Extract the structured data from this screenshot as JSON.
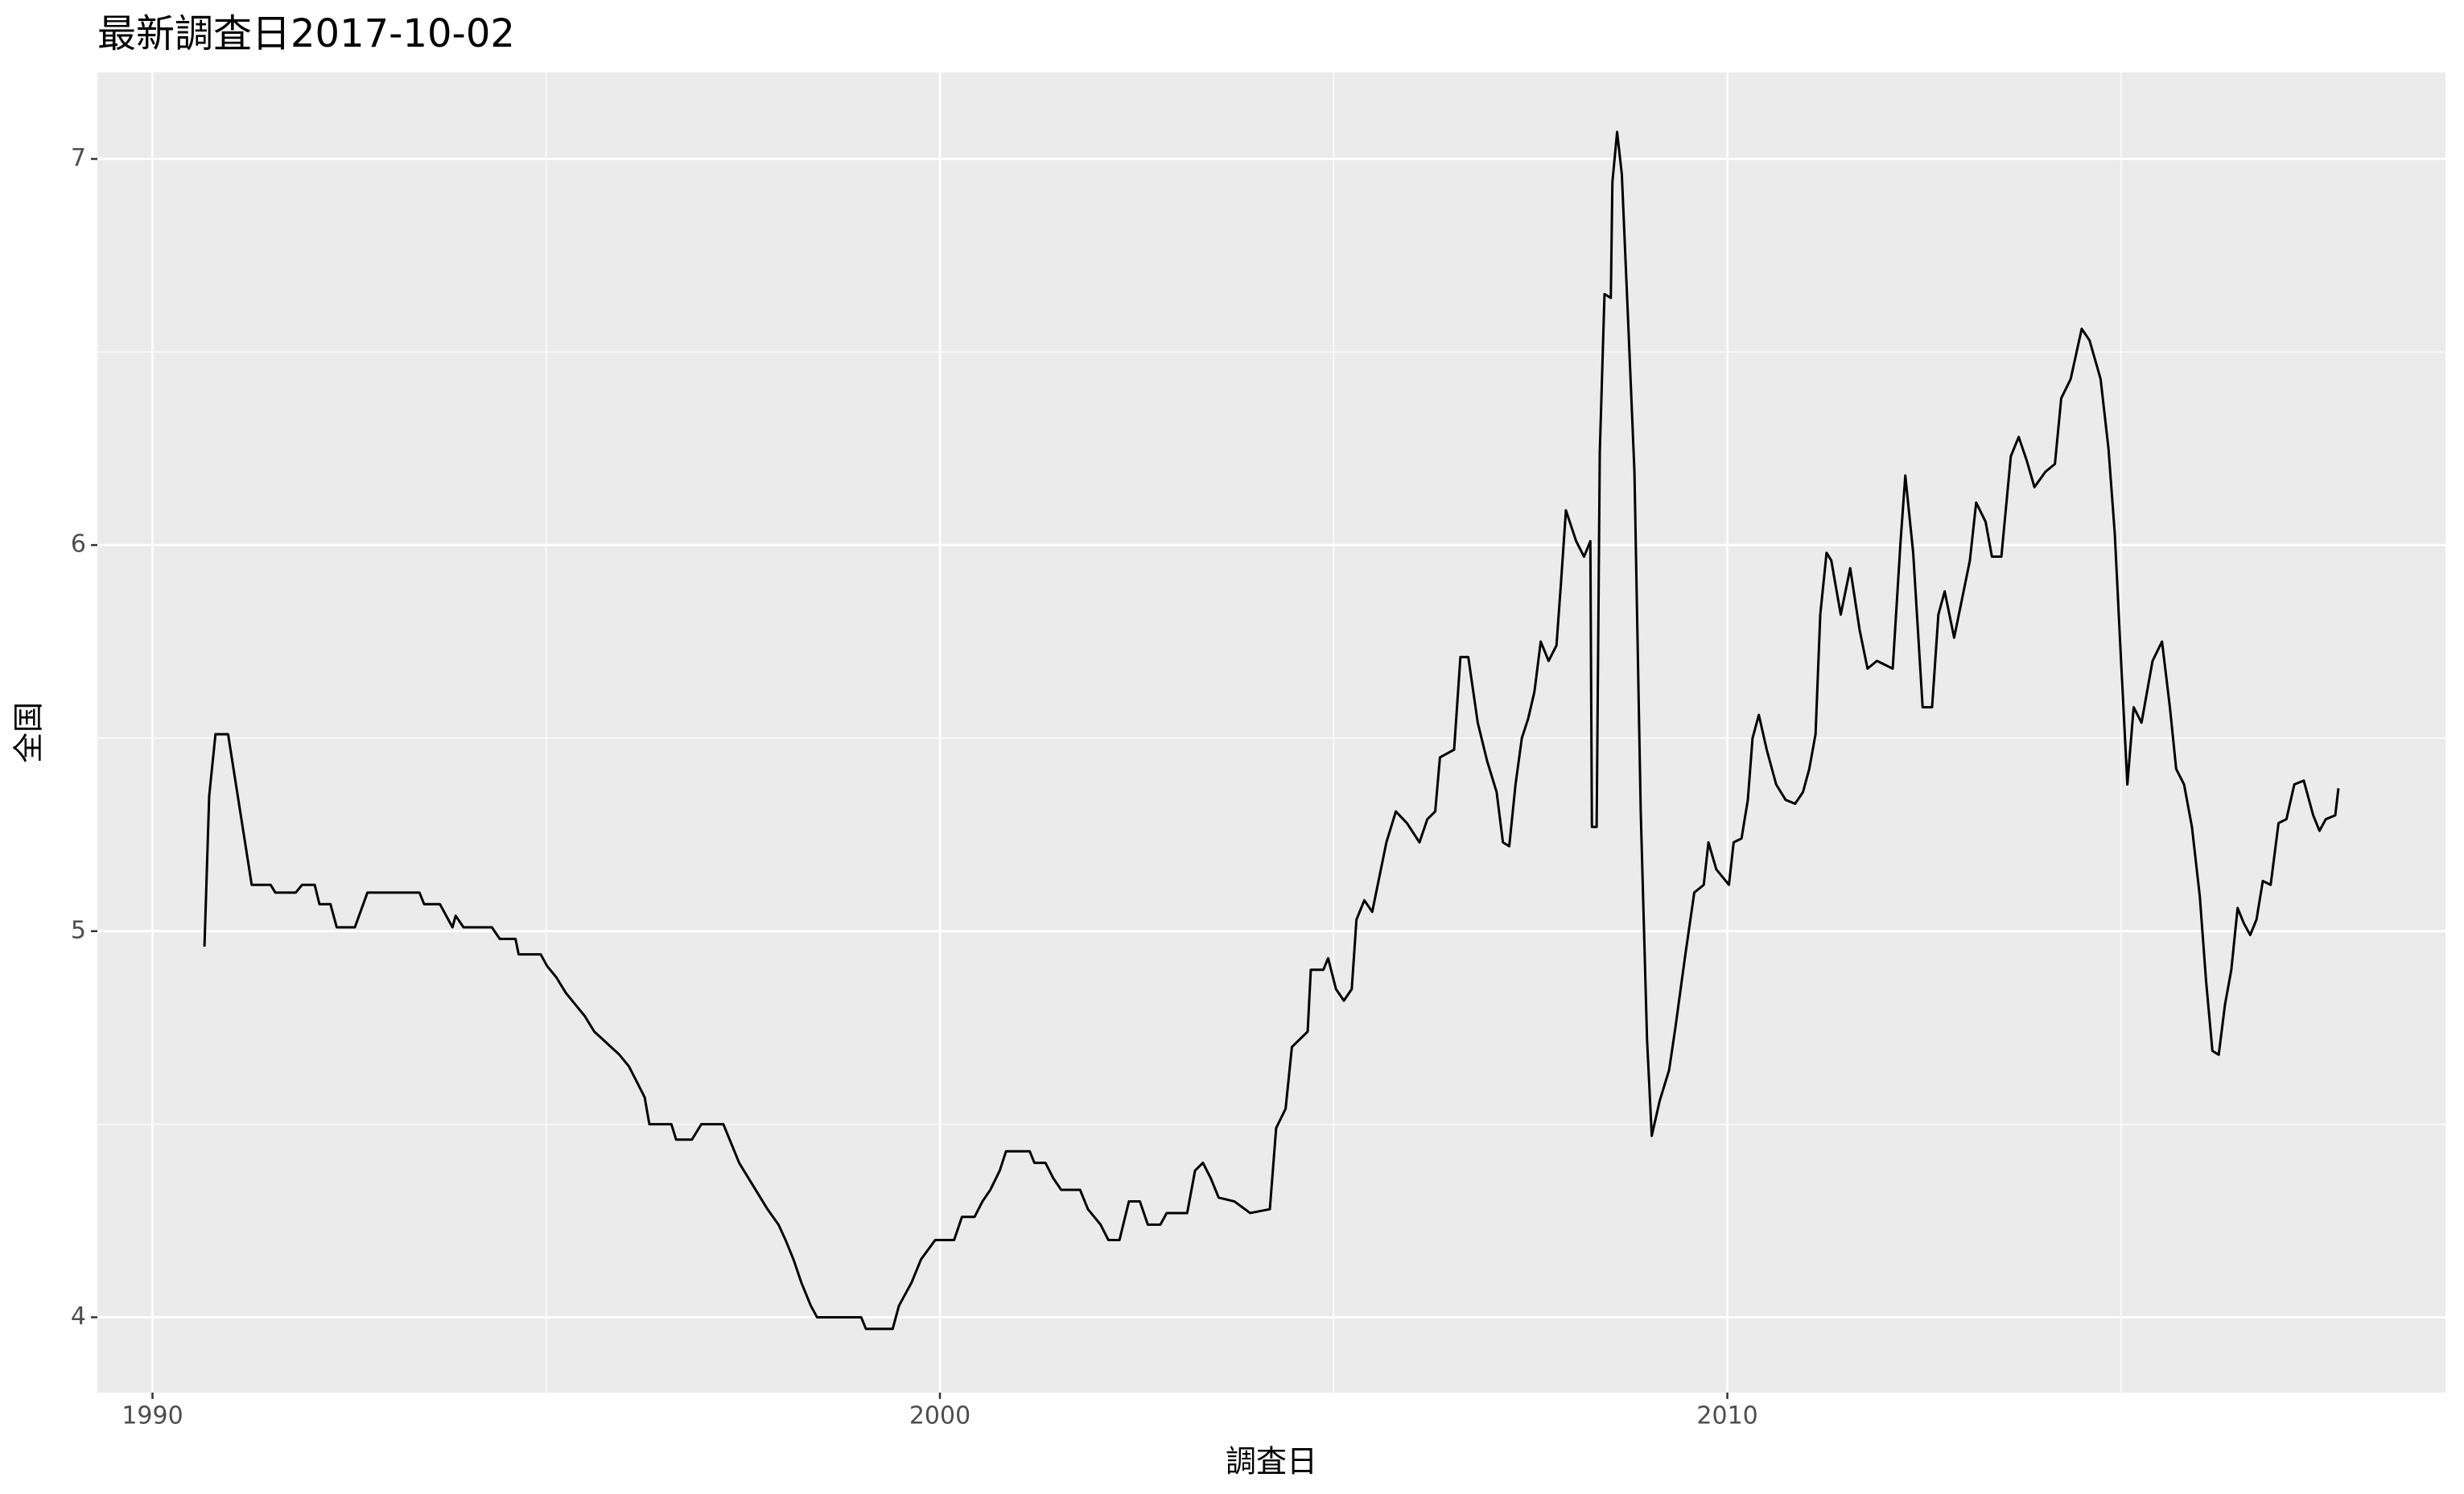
{
  "chart_data": {
    "type": "line",
    "title": "最新調査日2017-10-02",
    "x_label": "調査日",
    "y_label": "全国",
    "color": "#000000",
    "background": "#ebebeb",
    "grid": true,
    "xlim": [
      1989.3,
      2019.12
    ],
    "xticks": [
      1990,
      2000,
      2010
    ],
    "x_minor_grid": [
      1995,
      2005,
      2015
    ],
    "ylim": [
      3.805,
      7.224
    ],
    "yticks": [
      4,
      5,
      6,
      7
    ],
    "y_minor_grid": [
      4.5,
      5.5,
      6.5
    ],
    "x": [
      1990.66,
      1990.72,
      1990.8,
      1990.96,
      1991.06,
      1991.16,
      1991.26,
      1991.5,
      1991.56,
      1991.82,
      1991.9,
      1992.06,
      1992.12,
      1992.26,
      1992.34,
      1992.57,
      1992.73,
      1993.39,
      1993.45,
      1993.65,
      1993.73,
      1993.81,
      1993.85,
      1993.95,
      1994.31,
      1994.41,
      1994.61,
      1994.65,
      1994.93,
      1995.01,
      1995.13,
      1995.25,
      1995.37,
      1995.49,
      1995.61,
      1995.77,
      1995.93,
      1996.05,
      1996.15,
      1996.25,
      1996.31,
      1996.59,
      1996.65,
      1996.85,
      1996.97,
      1997.25,
      1997.35,
      1997.45,
      1997.57,
      1997.69,
      1997.81,
      1997.95,
      1998.04,
      1998.14,
      1998.24,
      1998.36,
      1998.44,
      1999.0,
      1999.06,
      1999.4,
      1999.48,
      1999.64,
      1999.76,
      1999.94,
      2000.18,
      2000.28,
      2000.44,
      2000.54,
      2000.64,
      2000.76,
      2000.84,
      2001.14,
      2001.2,
      2001.34,
      2001.44,
      2001.54,
      2001.78,
      2001.88,
      2002.04,
      2002.14,
      2002.28,
      2002.4,
      2002.54,
      2002.64,
      2002.8,
      2002.88,
      2003.14,
      2003.24,
      2003.34,
      2003.44,
      2003.54,
      2003.74,
      2003.94,
      2004.19,
      2004.27,
      2004.39,
      2004.47,
      2004.67,
      2004.71,
      2004.87,
      2004.93,
      2005.03,
      2005.13,
      2005.23,
      2005.29,
      2005.39,
      2005.49,
      2005.59,
      2005.67,
      2005.79,
      2005.93,
      2006.09,
      2006.19,
      2006.29,
      2006.35,
      2006.53,
      2006.61,
      2006.71,
      2006.83,
      2006.95,
      2007.07,
      2007.15,
      2007.23,
      2007.31,
      2007.39,
      2007.47,
      2007.55,
      2007.63,
      2007.73,
      2007.83,
      2007.89,
      2007.95,
      2008.08,
      2008.18,
      2008.26,
      2008.28,
      2008.34,
      2008.38,
      2008.44,
      2008.52,
      2008.54,
      2008.6,
      2008.66,
      2008.74,
      2008.82,
      2008.9,
      2008.98,
      2009.04,
      2009.14,
      2009.26,
      2009.34,
      2009.46,
      2009.58,
      2009.7,
      2009.76,
      2009.86,
      2010.02,
      2010.08,
      2010.18,
      2010.26,
      2010.32,
      2010.4,
      2010.5,
      2010.62,
      2010.74,
      2010.86,
      2010.96,
      2011.04,
      2011.12,
      2011.18,
      2011.26,
      2011.32,
      2011.44,
      2011.56,
      2011.68,
      2011.78,
      2011.9,
      2012.1,
      2012.2,
      2012.26,
      2012.36,
      2012.48,
      2012.6,
      2012.68,
      2012.76,
      2012.88,
      2013.0,
      2013.08,
      2013.16,
      2013.28,
      2013.36,
      2013.48,
      2013.6,
      2013.7,
      2013.8,
      2013.9,
      2014.04,
      2014.16,
      2014.24,
      2014.36,
      2014.5,
      2014.6,
      2014.74,
      2014.84,
      2014.92,
      2015.0,
      2015.08,
      2015.16,
      2015.26,
      2015.4,
      2015.52,
      2015.62,
      2015.7,
      2015.8,
      2015.9,
      2016.0,
      2016.08,
      2016.16,
      2016.24,
      2016.32,
      2016.4,
      2016.48,
      2016.56,
      2016.64,
      2016.72,
      2016.8,
      2016.9,
      2017.0,
      2017.1,
      2017.2,
      2017.32,
      2017.44,
      2017.52,
      2017.6,
      2017.72,
      2017.76
    ],
    "values": [
      4.96,
      5.35,
      5.51,
      5.51,
      5.38,
      5.25,
      5.12,
      5.12,
      5.1,
      5.1,
      5.12,
      5.12,
      5.07,
      5.07,
      5.01,
      5.01,
      5.1,
      5.1,
      5.07,
      5.07,
      5.04,
      5.01,
      5.04,
      5.01,
      5.01,
      4.98,
      4.98,
      4.94,
      4.94,
      4.91,
      4.88,
      4.84,
      4.81,
      4.78,
      4.74,
      4.71,
      4.68,
      4.65,
      4.61,
      4.57,
      4.5,
      4.5,
      4.46,
      4.46,
      4.5,
      4.5,
      4.45,
      4.4,
      4.36,
      4.32,
      4.28,
      4.24,
      4.2,
      4.15,
      4.09,
      4.03,
      4.0,
      4.0,
      3.97,
      3.97,
      4.03,
      4.09,
      4.15,
      4.2,
      4.2,
      4.26,
      4.26,
      4.3,
      4.33,
      4.38,
      4.43,
      4.43,
      4.4,
      4.4,
      4.36,
      4.33,
      4.33,
      4.28,
      4.24,
      4.2,
      4.2,
      4.3,
      4.3,
      4.24,
      4.24,
      4.27,
      4.27,
      4.38,
      4.4,
      4.36,
      4.31,
      4.3,
      4.27,
      4.28,
      4.49,
      4.54,
      4.7,
      4.74,
      4.9,
      4.9,
      4.93,
      4.85,
      4.82,
      4.85,
      5.03,
      5.08,
      5.05,
      5.15,
      5.23,
      5.31,
      5.28,
      5.23,
      5.29,
      5.31,
      5.45,
      5.47,
      5.71,
      5.71,
      5.54,
      5.44,
      5.36,
      5.23,
      5.22,
      5.38,
      5.5,
      5.55,
      5.62,
      5.75,
      5.7,
      5.74,
      5.91,
      6.09,
      6.01,
      5.97,
      6.01,
      5.27,
      5.27,
      6.24,
      6.65,
      6.64,
      6.94,
      7.07,
      6.96,
      6.58,
      6.19,
      5.31,
      4.72,
      4.47,
      4.56,
      4.64,
      4.75,
      4.93,
      5.1,
      5.12,
      5.23,
      5.16,
      5.12,
      5.23,
      5.24,
      5.34,
      5.5,
      5.56,
      5.47,
      5.38,
      5.34,
      5.33,
      5.36,
      5.42,
      5.51,
      5.82,
      5.98,
      5.96,
      5.82,
      5.94,
      5.78,
      5.68,
      5.7,
      5.68,
      6.01,
      6.18,
      5.98,
      5.58,
      5.58,
      5.82,
      5.88,
      5.76,
      5.88,
      5.96,
      6.11,
      6.06,
      5.97,
      5.97,
      6.23,
      6.28,
      6.22,
      6.15,
      6.19,
      6.21,
      6.38,
      6.43,
      6.56,
      6.53,
      6.43,
      6.25,
      6.03,
      5.7,
      5.38,
      5.58,
      5.54,
      5.7,
      5.75,
      5.58,
      5.42,
      5.38,
      5.27,
      5.09,
      4.87,
      4.69,
      4.68,
      4.81,
      4.9,
      5.06,
      5.02,
      4.99,
      5.03,
      5.13,
      5.12,
      5.28,
      5.29,
      5.38,
      5.39,
      5.3,
      5.26,
      5.29,
      5.3,
      5.37
    ]
  }
}
